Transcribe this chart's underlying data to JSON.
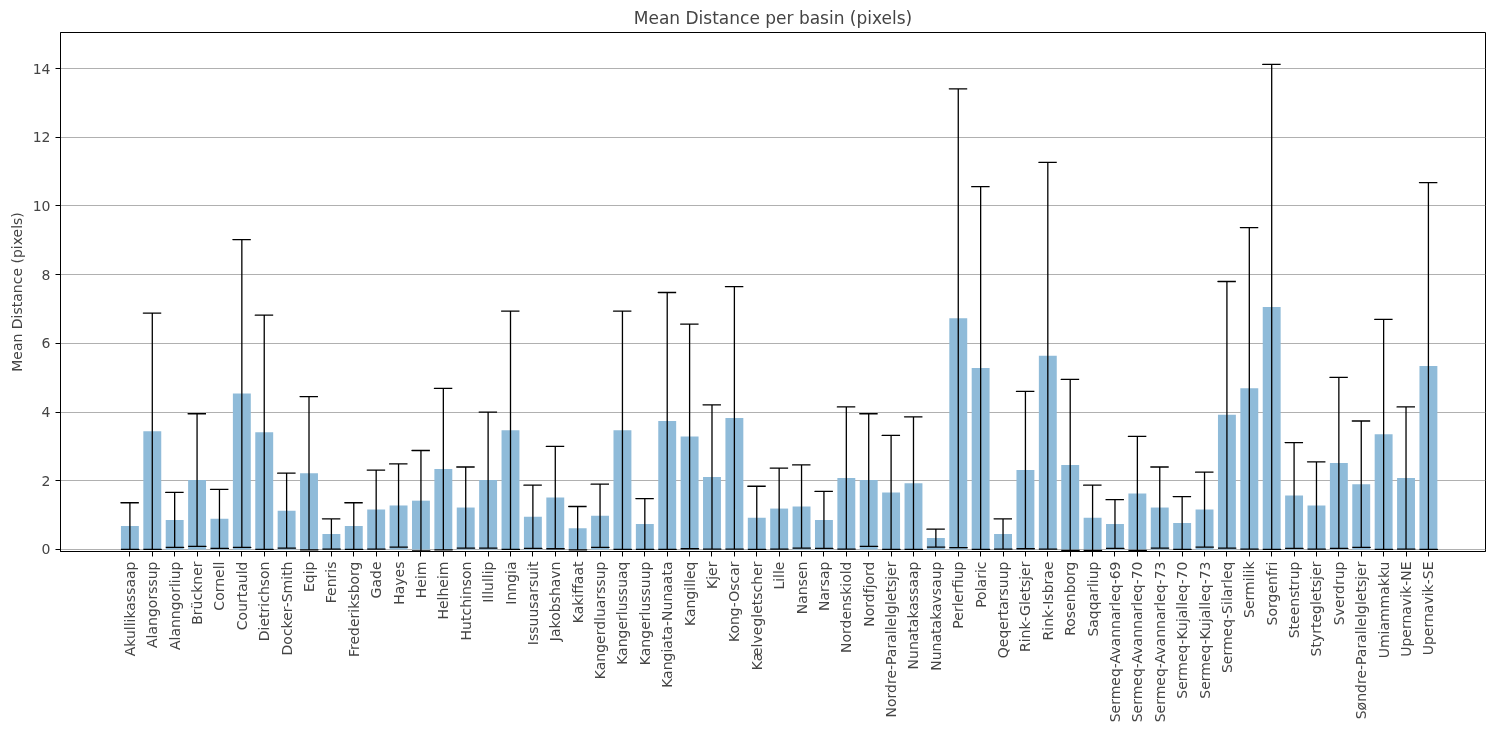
{
  "chart_data": {
    "type": "bar",
    "title": "Mean Distance per basin (pixels)",
    "ylabel": "Mean Distance (pixels)",
    "categories": [
      "Akullikassaap",
      "Alangorssup",
      "Alanngorliup",
      "Brückner",
      "Cornell",
      "Courtauld",
      "Dietrichson",
      "Docker-Smith",
      "Eqip",
      "Fenris",
      "Frederiksborg",
      "Gade",
      "Hayes",
      "Heim",
      "Helheim",
      "Hutchinson",
      "Illullip",
      "Inngia",
      "Issuusarsuit",
      "Jakobshavn",
      "Kakiffaat",
      "Kangerdluarssup",
      "Kangerlussuaq",
      "Kangerlussuup",
      "Kangiata-Nunaata",
      "Kangilleq",
      "Kjer",
      "Kong-Oscar",
      "Kælvegletscher",
      "Lille",
      "Nansen",
      "Narsap",
      "Nordenskiold",
      "Nordfjord",
      "Nordre-Parallelgletsjer",
      "Nunatakassaap",
      "Nunatakavsaup",
      "Perlerfiup",
      "Polaric",
      "Qeqertarsuup",
      "Rink-Gletsjer",
      "Rink-Isbrae",
      "Rosenborg",
      "Saqqarliup",
      "Sermeq-Avannarleq-69",
      "Sermeq-Avannarleq-70",
      "Sermeq-Avannarleq-73",
      "Sermeq-Kujalleq-70",
      "Sermeq-Kujalleq-73",
      "Sermeq-Silarleq",
      "Sermilik",
      "Sorgenfri",
      "Steenstrup",
      "Styrtegletsjer",
      "Sverdrup",
      "Søndre-Parallelgletsjer",
      "Umiammakku",
      "Upernavik-NE",
      "Upernavik-SE"
    ],
    "values": [
      0.68,
      3.44,
      0.86,
      2.02,
      0.89,
      4.54,
      3.41,
      1.13,
      2.22,
      0.45,
      0.68,
      1.16,
      1.28,
      1.42,
      2.34,
      1.22,
      2.02,
      3.47,
      0.95,
      1.51,
      0.62,
      0.98,
      3.47,
      0.74,
      3.74,
      3.29,
      2.11,
      3.83,
      0.92,
      1.19,
      1.25,
      0.86,
      2.08,
      2.02,
      1.66,
      1.93,
      0.33,
      6.73,
      5.28,
      0.45,
      2.31,
      5.64,
      2.46,
      0.92,
      0.74,
      1.63,
      1.22,
      0.77,
      1.16,
      3.92,
      4.69,
      7.06,
      1.57,
      1.28,
      2.52,
      1.9,
      3.35,
      2.08,
      5.34
    ],
    "errors": [
      0.68,
      3.44,
      0.8,
      1.93,
      0.86,
      4.48,
      3.41,
      1.09,
      2.23,
      0.44,
      0.68,
      1.15,
      1.21,
      1.46,
      2.35,
      1.18,
      1.98,
      3.47,
      0.92,
      1.49,
      0.63,
      0.92,
      3.47,
      0.74,
      3.74,
      3.27,
      2.1,
      3.82,
      0.92,
      1.18,
      1.21,
      0.83,
      2.07,
      1.93,
      1.66,
      1.93,
      0.26,
      6.68,
      5.28,
      0.44,
      2.29,
      5.63,
      2.49,
      0.95,
      0.71,
      1.66,
      1.18,
      0.77,
      1.09,
      3.88,
      4.68,
      7.06,
      1.54,
      1.27,
      2.49,
      1.84,
      3.35,
      2.07,
      5.34
    ],
    "color": "#8fbbd9",
    "ylim": [
      -0.06,
      15.05
    ],
    "yticks": [
      0,
      2,
      4,
      6,
      8,
      10,
      12,
      14
    ],
    "grid": "y"
  }
}
